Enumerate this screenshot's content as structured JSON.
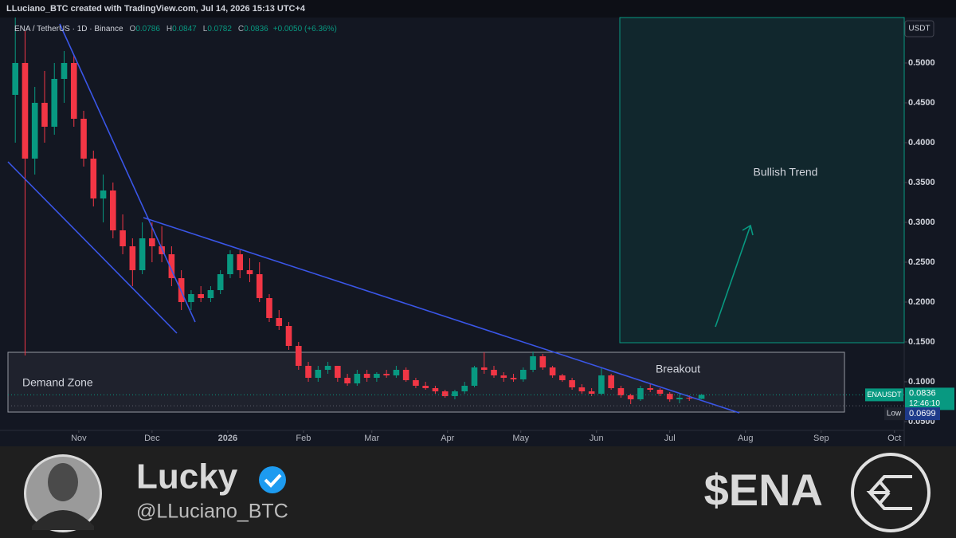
{
  "header": {
    "credit": "LLuciano_BTC created with TradingView.com, Jul 14, 2026 15:13 UTC+4"
  },
  "chart_data": {
    "type": "candlestick",
    "symbol": "ENA / TetherUS · 1D · Binance",
    "ohlc_prefixes": [
      "O",
      "H",
      "L",
      "C"
    ],
    "change_label": "+0.0050 (+6.36%)",
    "currency": "USDT",
    "symbol_tag": "ENAUSDT",
    "countdown": "12:46:10",
    "low_label": "Low",
    "low_value": 0.0699,
    "up_color": "#089981",
    "down_color": "#f23645",
    "annotations": [
      "Demand Zone",
      "Bullish Trend",
      "Breakout"
    ],
    "x": [
      "2025-10-06",
      "2025-10-10",
      "2025-10-14",
      "2025-10-18",
      "2025-10-22",
      "2025-10-26",
      "2025-10-30",
      "2025-11-03",
      "2025-11-07",
      "2025-11-11",
      "2025-11-15",
      "2025-11-19",
      "2025-11-23",
      "2025-11-27",
      "2025-12-01",
      "2025-12-05",
      "2025-12-09",
      "2025-12-13",
      "2025-12-17",
      "2025-12-21",
      "2025-12-25",
      "2025-12-29",
      "2026-01-02",
      "2026-01-06",
      "2026-01-10",
      "2026-01-14",
      "2026-01-18",
      "2026-01-22",
      "2026-01-26",
      "2026-01-30",
      "2026-02-03",
      "2026-02-07",
      "2026-02-11",
      "2026-02-15",
      "2026-02-19",
      "2026-02-23",
      "2026-02-27",
      "2026-03-03",
      "2026-03-07",
      "2026-03-11",
      "2026-03-15",
      "2026-03-19",
      "2026-03-23",
      "2026-03-27",
      "2026-03-31",
      "2026-04-04",
      "2026-04-08",
      "2026-04-12",
      "2026-04-16",
      "2026-04-20",
      "2026-04-24",
      "2026-04-28",
      "2026-05-02",
      "2026-05-06",
      "2026-05-10",
      "2026-05-14",
      "2026-05-18",
      "2026-05-22",
      "2026-05-26",
      "2026-05-30",
      "2026-06-03",
      "2026-06-07",
      "2026-06-11",
      "2026-06-15",
      "2026-06-19",
      "2026-06-23",
      "2026-06-27",
      "2026-07-01",
      "2026-07-05",
      "2026-07-09",
      "2026-07-14"
    ],
    "open": [
      0.46,
      0.5,
      0.38,
      0.45,
      0.42,
      0.48,
      0.5,
      0.43,
      0.38,
      0.33,
      0.34,
      0.29,
      0.27,
      0.24,
      0.28,
      0.27,
      0.26,
      0.23,
      0.2,
      0.21,
      0.205,
      0.215,
      0.235,
      0.26,
      0.24,
      0.235,
      0.205,
      0.18,
      0.17,
      0.145,
      0.12,
      0.105,
      0.115,
      0.12,
      0.105,
      0.098,
      0.11,
      0.105,
      0.11,
      0.108,
      0.115,
      0.102,
      0.095,
      0.092,
      0.088,
      0.082,
      0.088,
      0.095,
      0.118,
      0.115,
      0.108,
      0.105,
      0.103,
      0.115,
      0.132,
      0.118,
      0.108,
      0.102,
      0.093,
      0.088,
      0.085,
      0.108,
      0.092,
      0.083,
      0.078,
      0.092,
      0.09,
      0.085,
      0.078,
      0.08,
      0.0786
    ],
    "high": [
      0.56,
      0.54,
      0.47,
      0.49,
      0.5,
      0.515,
      0.51,
      0.44,
      0.39,
      0.36,
      0.35,
      0.31,
      0.28,
      0.3,
      0.3,
      0.295,
      0.27,
      0.24,
      0.215,
      0.22,
      0.22,
      0.24,
      0.265,
      0.265,
      0.255,
      0.25,
      0.21,
      0.19,
      0.175,
      0.15,
      0.125,
      0.12,
      0.125,
      0.12,
      0.11,
      0.115,
      0.115,
      0.112,
      0.115,
      0.12,
      0.118,
      0.105,
      0.1,
      0.095,
      0.09,
      0.09,
      0.1,
      0.12,
      0.137,
      0.12,
      0.112,
      0.11,
      0.118,
      0.138,
      0.135,
      0.12,
      0.11,
      0.105,
      0.097,
      0.092,
      0.118,
      0.11,
      0.095,
      0.085,
      0.095,
      0.098,
      0.092,
      0.087,
      0.085,
      0.083,
      0.0847
    ],
    "low": [
      0.4,
      0.133,
      0.36,
      0.4,
      0.41,
      0.45,
      0.42,
      0.37,
      0.32,
      0.3,
      0.28,
      0.26,
      0.22,
      0.235,
      0.25,
      0.25,
      0.22,
      0.19,
      0.19,
      0.2,
      0.2,
      0.21,
      0.23,
      0.23,
      0.225,
      0.2,
      0.175,
      0.165,
      0.14,
      0.115,
      0.1,
      0.1,
      0.11,
      0.1,
      0.095,
      0.095,
      0.1,
      0.1,
      0.105,
      0.105,
      0.1,
      0.092,
      0.09,
      0.085,
      0.08,
      0.078,
      0.085,
      0.093,
      0.11,
      0.105,
      0.1,
      0.1,
      0.1,
      0.112,
      0.115,
      0.105,
      0.1,
      0.09,
      0.085,
      0.082,
      0.083,
      0.09,
      0.08,
      0.072,
      0.076,
      0.087,
      0.082,
      0.075,
      0.073,
      0.076,
      0.0782
    ],
    "close": [
      0.5,
      0.38,
      0.45,
      0.42,
      0.48,
      0.5,
      0.43,
      0.38,
      0.33,
      0.34,
      0.29,
      0.27,
      0.24,
      0.28,
      0.27,
      0.26,
      0.23,
      0.2,
      0.21,
      0.205,
      0.215,
      0.235,
      0.26,
      0.24,
      0.235,
      0.205,
      0.18,
      0.17,
      0.145,
      0.12,
      0.105,
      0.115,
      0.12,
      0.105,
      0.098,
      0.11,
      0.105,
      0.11,
      0.108,
      0.115,
      0.102,
      0.095,
      0.092,
      0.088,
      0.082,
      0.088,
      0.095,
      0.118,
      0.115,
      0.108,
      0.105,
      0.103,
      0.115,
      0.132,
      0.118,
      0.108,
      0.102,
      0.093,
      0.088,
      0.085,
      0.108,
      0.092,
      0.083,
      0.078,
      0.092,
      0.09,
      0.085,
      0.078,
      0.08,
      0.079,
      0.0836
    ],
    "xlim": [
      "2025-10-03",
      "2026-10-05"
    ],
    "xticks": [
      {
        "value": "2025-11-01",
        "label": "Nov"
      },
      {
        "value": "2025-12-01",
        "label": "Dec"
      },
      {
        "value": "2026-01-01",
        "label": "2026"
      },
      {
        "value": "2026-02-01",
        "label": "Feb"
      },
      {
        "value": "2026-03-01",
        "label": "Mar"
      },
      {
        "value": "2026-04-01",
        "label": "Apr"
      },
      {
        "value": "2026-05-01",
        "label": "May"
      },
      {
        "value": "2026-06-01",
        "label": "Jun"
      },
      {
        "value": "2026-07-01",
        "label": "Jul"
      },
      {
        "value": "2026-08-01",
        "label": "Aug"
      },
      {
        "value": "2026-09-01",
        "label": "Sep"
      },
      {
        "value": "2026-10-01",
        "label": "Oct"
      }
    ],
    "ylim": [
      0.019,
      0.557
    ],
    "yticks": [
      {
        "value": 0.05,
        "label": "0.0500"
      },
      {
        "value": 0.1,
        "label": "0.1000"
      },
      {
        "value": 0.15,
        "label": "0.1500"
      },
      {
        "value": 0.2,
        "label": "0.2000"
      },
      {
        "value": 0.25,
        "label": "0.2500"
      },
      {
        "value": 0.3,
        "label": "0.3000"
      },
      {
        "value": 0.35,
        "label": "0.3500"
      },
      {
        "value": 0.4,
        "label": "0.4000"
      },
      {
        "value": 0.45,
        "label": "0.4500"
      },
      {
        "value": 0.5,
        "label": "0.5000"
      }
    ]
  },
  "profile": {
    "name": "Lucky",
    "handle": "@LLuciano_BTC",
    "ticker": "$ENA"
  }
}
